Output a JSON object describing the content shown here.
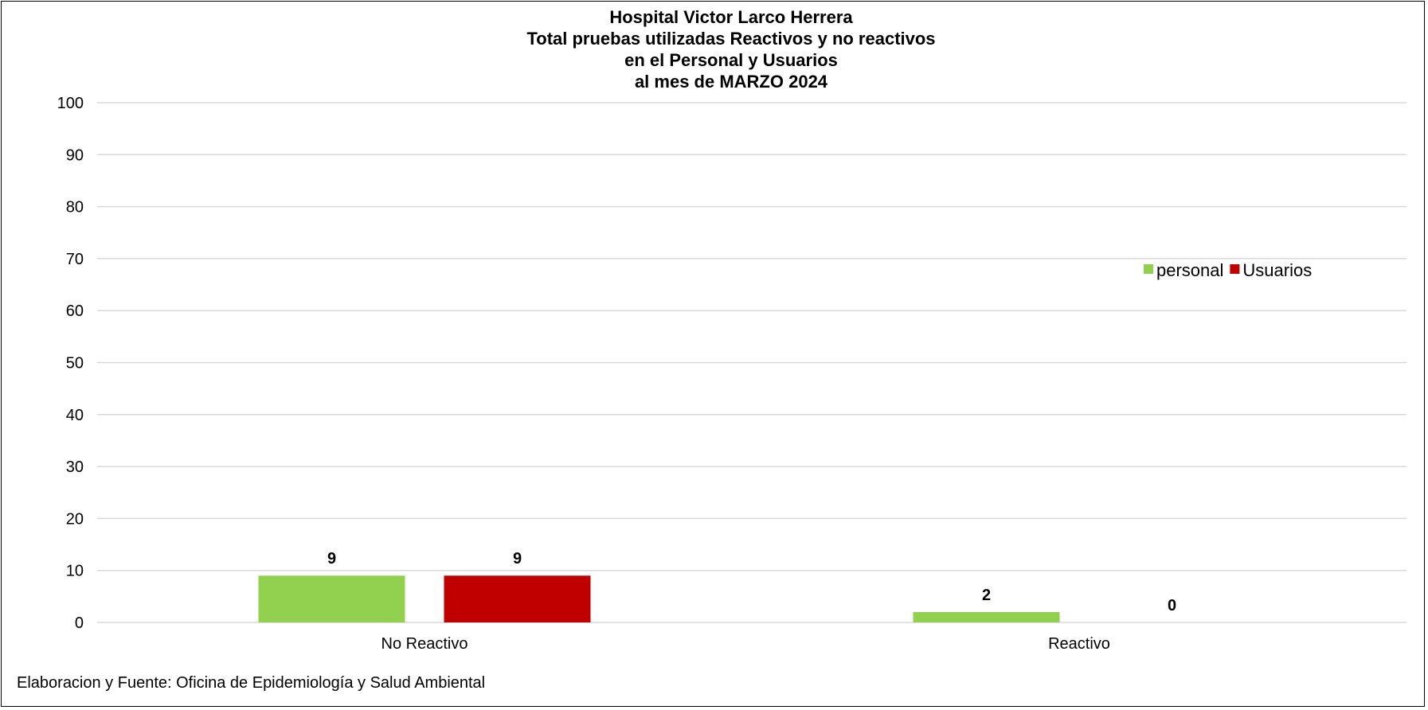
{
  "chart_data": {
    "type": "bar",
    "title_lines": [
      "Hospital Victor Larco Herrera",
      "Total pruebas utilizadas Reactivos y no reactivos",
      "en el Personal y Usuarios",
      "al mes de MARZO 2024"
    ],
    "categories": [
      "No Reactivo",
      "Reactivo"
    ],
    "series": [
      {
        "name": "personal",
        "values": [
          9,
          2
        ],
        "color": "#92d050"
      },
      {
        "name": "Usuarios",
        "values": [
          9,
          0
        ],
        "color": "#c00000"
      }
    ],
    "ylim": [
      0,
      100
    ],
    "yticks": [
      "0",
      "10",
      "20",
      "30",
      "40",
      "50",
      "60",
      "70",
      "80",
      "90",
      "100"
    ],
    "grid": true,
    "legend_position": "right",
    "xlabel": "",
    "ylabel": ""
  },
  "footer": {
    "source": "Elaboracion y Fuente: Oficina de Epidemiología y Salud Ambiental"
  }
}
